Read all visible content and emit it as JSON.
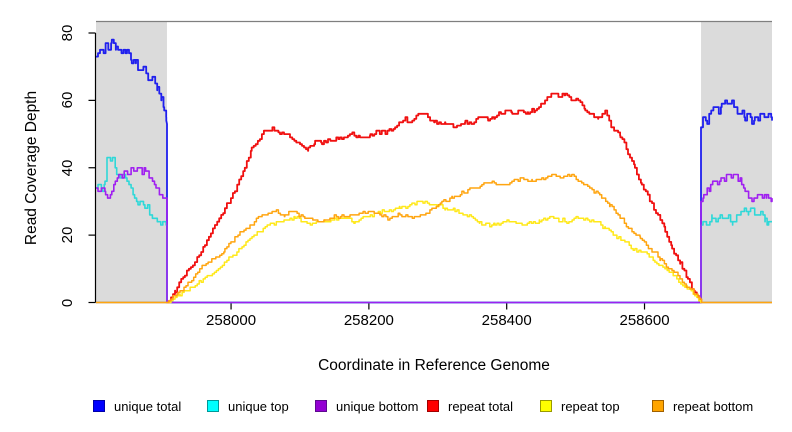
{
  "chart_data": {
    "type": "line",
    "title": "",
    "xlabel": "Coordinate in Reference Genome",
    "ylabel": "Read Coverage Depth",
    "xlim": [
      257804,
      258785
    ],
    "ylim": [
      0,
      83
    ],
    "x_ticks": [
      258000,
      258200,
      258400,
      258600
    ],
    "y_ticks": [
      0,
      20,
      40,
      60,
      80
    ],
    "grid": false,
    "legend_position": "bottom",
    "shaded_regions": [
      {
        "x0": 257804,
        "x1": 257907,
        "color": "#dbdbdb"
      },
      {
        "x0": 258682,
        "x1": 258785,
        "color": "#dbdbdb"
      }
    ],
    "legend": {
      "entries": [
        {
          "label": "unique total",
          "fill": "#0000ff",
          "border": "#0000a8"
        },
        {
          "label": "unique top",
          "fill": "#00ffff",
          "border": "#009898"
        },
        {
          "label": "unique bottom",
          "fill": "#9400d3",
          "border": "#5d0a8f"
        },
        {
          "label": "repeat total",
          "fill": "#ff0000",
          "border": "#a00000"
        },
        {
          "label": "repeat top",
          "fill": "#ffff00",
          "border": "#9a9a00"
        },
        {
          "label": "repeat bottom",
          "fill": "#ffa500",
          "border": "#a06000"
        }
      ]
    },
    "series": [
      {
        "name": "unique total",
        "color": "#2020ee",
        "points": [
          [
            257804,
            73
          ],
          [
            257811,
            75
          ],
          [
            257815,
            74
          ],
          [
            257819,
            77
          ],
          [
            257823,
            75
          ],
          [
            257827,
            78
          ],
          [
            257833,
            76
          ],
          [
            257841,
            74
          ],
          [
            257849,
            75
          ],
          [
            257856,
            71
          ],
          [
            257862,
            72
          ],
          [
            257867,
            69
          ],
          [
            257874,
            70
          ],
          [
            257880,
            66
          ],
          [
            257887,
            67
          ],
          [
            257893,
            64
          ],
          [
            257899,
            61
          ],
          [
            257903,
            57
          ],
          [
            257906,
            54
          ],
          [
            257907,
            53
          ],
          [
            257907,
            0
          ],
          [
            258682,
            0
          ],
          [
            258682,
            52
          ],
          [
            258686,
            55
          ],
          [
            258691,
            53
          ],
          [
            258697,
            57
          ],
          [
            258702,
            58
          ],
          [
            258708,
            56
          ],
          [
            258712,
            59
          ],
          [
            258717,
            60
          ],
          [
            258722,
            59
          ],
          [
            258727,
            60
          ],
          [
            258732,
            58
          ],
          [
            258737,
            56
          ],
          [
            258742,
            57
          ],
          [
            258746,
            54
          ],
          [
            258751,
            56
          ],
          [
            258756,
            53
          ],
          [
            258760,
            55
          ],
          [
            258765,
            54
          ],
          [
            258771,
            56
          ],
          [
            258777,
            55
          ],
          [
            258781,
            56
          ],
          [
            258785,
            54
          ]
        ]
      },
      {
        "name": "unique top",
        "color": "#2fd8d8",
        "points": [
          [
            257804,
            34
          ],
          [
            257809,
            35
          ],
          [
            257813,
            33
          ],
          [
            257817,
            36
          ],
          [
            257820,
            43
          ],
          [
            257825,
            42
          ],
          [
            257829,
            43
          ],
          [
            257834,
            38
          ],
          [
            257839,
            37
          ],
          [
            257844,
            38
          ],
          [
            257849,
            36
          ],
          [
            257855,
            34
          ],
          [
            257860,
            31
          ],
          [
            257865,
            29
          ],
          [
            257870,
            30
          ],
          [
            257875,
            28
          ],
          [
            257879,
            29
          ],
          [
            257883,
            26
          ],
          [
            257888,
            25
          ],
          [
            257893,
            24
          ],
          [
            257898,
            23
          ],
          [
            257903,
            24
          ],
          [
            257907,
            22
          ],
          [
            257907,
            0
          ],
          [
            258682,
            0
          ],
          [
            258682,
            23
          ],
          [
            258687,
            24
          ],
          [
            258692,
            23
          ],
          [
            258698,
            25
          ],
          [
            258704,
            24
          ],
          [
            258710,
            26
          ],
          [
            258716,
            25
          ],
          [
            258722,
            26
          ],
          [
            258728,
            24
          ],
          [
            258734,
            26
          ],
          [
            258740,
            27
          ],
          [
            258745,
            28
          ],
          [
            258751,
            27
          ],
          [
            258757,
            28
          ],
          [
            258763,
            26
          ],
          [
            258769,
            27
          ],
          [
            258775,
            25
          ],
          [
            258780,
            24
          ],
          [
            258785,
            24
          ]
        ]
      },
      {
        "name": "unique bottom",
        "color": "#a020f0",
        "points": [
          [
            257804,
            34
          ],
          [
            257809,
            33
          ],
          [
            257814,
            34
          ],
          [
            257818,
            32
          ],
          [
            257822,
            31
          ],
          [
            257827,
            33
          ],
          [
            257832,
            36
          ],
          [
            257837,
            38
          ],
          [
            257842,
            37
          ],
          [
            257847,
            39
          ],
          [
            257852,
            38
          ],
          [
            257856,
            40
          ],
          [
            257861,
            39
          ],
          [
            257866,
            40
          ],
          [
            257871,
            38
          ],
          [
            257876,
            39
          ],
          [
            257881,
            37
          ],
          [
            257886,
            36
          ],
          [
            257891,
            34
          ],
          [
            257896,
            32
          ],
          [
            257901,
            31
          ],
          [
            257907,
            30
          ],
          [
            257907,
            0
          ],
          [
            258682,
            0
          ],
          [
            258682,
            30
          ],
          [
            258686,
            32
          ],
          [
            258691,
            34
          ],
          [
            258696,
            35
          ],
          [
            258701,
            36
          ],
          [
            258706,
            35
          ],
          [
            258711,
            37
          ],
          [
            258716,
            36
          ],
          [
            258721,
            38
          ],
          [
            258726,
            37
          ],
          [
            258731,
            38
          ],
          [
            258736,
            36
          ],
          [
            258741,
            35
          ],
          [
            258746,
            33
          ],
          [
            258751,
            31
          ],
          [
            258756,
            30
          ],
          [
            258761,
            31
          ],
          [
            258766,
            32
          ],
          [
            258771,
            31
          ],
          [
            258777,
            32
          ],
          [
            258781,
            31
          ],
          [
            258785,
            31
          ]
        ]
      },
      {
        "name": "repeat total",
        "color": "#f01010",
        "points": [
          [
            257907,
            0
          ],
          [
            257919,
            3
          ],
          [
            257933,
            8
          ],
          [
            257948,
            12
          ],
          [
            257962,
            17
          ],
          [
            257977,
            23
          ],
          [
            257991,
            28
          ],
          [
            258006,
            33
          ],
          [
            258020,
            40
          ],
          [
            258030,
            46
          ],
          [
            258039,
            48
          ],
          [
            258049,
            51
          ],
          [
            258060,
            52
          ],
          [
            258071,
            50
          ],
          [
            258086,
            49
          ],
          [
            258100,
            47
          ],
          [
            258112,
            46
          ],
          [
            258122,
            48
          ],
          [
            258132,
            47
          ],
          [
            258144,
            48
          ],
          [
            258158,
            49
          ],
          [
            258173,
            50
          ],
          [
            258187,
            49
          ],
          [
            258202,
            50
          ],
          [
            258213,
            51
          ],
          [
            258224,
            50
          ],
          [
            258238,
            52
          ],
          [
            258253,
            55
          ],
          [
            258263,
            54
          ],
          [
            258274,
            56
          ],
          [
            258286,
            55
          ],
          [
            258296,
            54
          ],
          [
            258311,
            53
          ],
          [
            258325,
            52
          ],
          [
            258340,
            54
          ],
          [
            258350,
            53
          ],
          [
            258361,
            55
          ],
          [
            258373,
            54
          ],
          [
            258383,
            55
          ],
          [
            258398,
            57
          ],
          [
            258408,
            56
          ],
          [
            258419,
            57
          ],
          [
            258431,
            56
          ],
          [
            258441,
            57
          ],
          [
            258456,
            60
          ],
          [
            258466,
            62
          ],
          [
            258475,
            61
          ],
          [
            258485,
            62
          ],
          [
            258495,
            60
          ],
          [
            258504,
            60
          ],
          [
            258514,
            57
          ],
          [
            258524,
            56
          ],
          [
            258533,
            55
          ],
          [
            258543,
            57
          ],
          [
            258553,
            52
          ],
          [
            258565,
            49
          ],
          [
            258576,
            44
          ],
          [
            258586,
            40
          ],
          [
            258596,
            35
          ],
          [
            258608,
            30
          ],
          [
            258620,
            26
          ],
          [
            258630,
            21
          ],
          [
            258640,
            16
          ],
          [
            258652,
            12
          ],
          [
            258663,
            7
          ],
          [
            258673,
            3
          ],
          [
            258682,
            0
          ]
        ]
      },
      {
        "name": "repeat top",
        "color": "#ffe81a",
        "points": [
          [
            257907,
            0
          ],
          [
            257926,
            2
          ],
          [
            257948,
            5
          ],
          [
            257970,
            8
          ],
          [
            257991,
            12
          ],
          [
            258013,
            16
          ],
          [
            258035,
            20
          ],
          [
            258054,
            23
          ],
          [
            258071,
            24
          ],
          [
            258093,
            25
          ],
          [
            258115,
            23
          ],
          [
            258136,
            24
          ],
          [
            258158,
            25
          ],
          [
            258180,
            24
          ],
          [
            258202,
            26
          ],
          [
            258224,
            27
          ],
          [
            258245,
            28
          ],
          [
            258267,
            29
          ],
          [
            258282,
            30
          ],
          [
            258296,
            29
          ],
          [
            258311,
            28
          ],
          [
            258325,
            27
          ],
          [
            258340,
            26
          ],
          [
            258361,
            24
          ],
          [
            258383,
            23
          ],
          [
            258405,
            24
          ],
          [
            258427,
            23
          ],
          [
            258448,
            24
          ],
          [
            258470,
            25
          ],
          [
            258492,
            24
          ],
          [
            258509,
            25
          ],
          [
            258528,
            24
          ],
          [
            258543,
            22
          ],
          [
            258557,
            20
          ],
          [
            258572,
            18
          ],
          [
            258586,
            16
          ],
          [
            258601,
            15
          ],
          [
            258615,
            12
          ],
          [
            258630,
            10
          ],
          [
            258644,
            8
          ],
          [
            258659,
            5
          ],
          [
            258673,
            2
          ],
          [
            258682,
            0
          ]
        ]
      },
      {
        "name": "repeat bottom",
        "color": "#ffa510",
        "points": [
          [
            257804,
            0
          ],
          [
            257907,
            0
          ],
          [
            257923,
            3
          ],
          [
            257940,
            6
          ],
          [
            257955,
            10
          ],
          [
            257972,
            13
          ],
          [
            257991,
            16
          ],
          [
            258010,
            20
          ],
          [
            258028,
            23
          ],
          [
            258045,
            26
          ],
          [
            258060,
            27
          ],
          [
            258078,
            26
          ],
          [
            258093,
            27
          ],
          [
            258107,
            25
          ],
          [
            258126,
            24
          ],
          [
            258144,
            25
          ],
          [
            258161,
            26
          ],
          [
            258180,
            26
          ],
          [
            258199,
            27
          ],
          [
            258216,
            26
          ],
          [
            258231,
            25
          ],
          [
            258245,
            26
          ],
          [
            258263,
            25
          ],
          [
            258277,
            26
          ],
          [
            258292,
            28
          ],
          [
            258306,
            30
          ],
          [
            258321,
            31
          ],
          [
            258335,
            33
          ],
          [
            258350,
            34
          ],
          [
            258364,
            35
          ],
          [
            258379,
            36
          ],
          [
            258393,
            35
          ],
          [
            258408,
            36
          ],
          [
            258422,
            37
          ],
          [
            258437,
            36
          ],
          [
            258451,
            37
          ],
          [
            258466,
            38
          ],
          [
            258480,
            37
          ],
          [
            258495,
            38
          ],
          [
            258506,
            36
          ],
          [
            258521,
            34
          ],
          [
            258535,
            32
          ],
          [
            258550,
            29
          ],
          [
            258565,
            25
          ],
          [
            258579,
            22
          ],
          [
            258594,
            19
          ],
          [
            258608,
            16
          ],
          [
            258623,
            13
          ],
          [
            258637,
            10
          ],
          [
            258652,
            7
          ],
          [
            258666,
            4
          ],
          [
            258681,
            1
          ],
          [
            258683,
            0
          ],
          [
            258785,
            0
          ]
        ]
      }
    ]
  }
}
